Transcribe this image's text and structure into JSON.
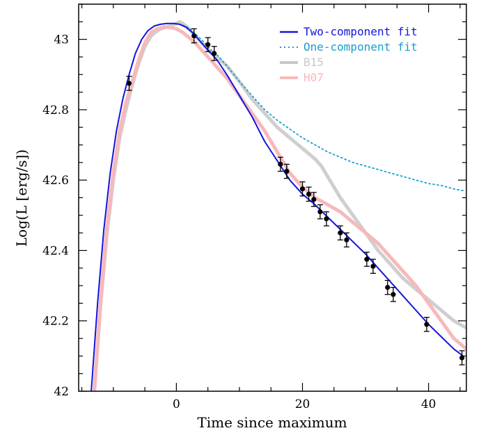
{
  "chart_data": {
    "type": "line",
    "title": "",
    "xlabel": "Time since maximum",
    "ylabel": "Log(L [erg/s])",
    "xlim": [
      -15.5,
      46
    ],
    "ylim": [
      42,
      43.1
    ],
    "x_ticks": [
      0,
      20,
      40
    ],
    "x_tick_labels": [
      "0",
      "20",
      "40"
    ],
    "x_minor_step": 5,
    "y_ticks": [
      42,
      42.2,
      42.4,
      42.6,
      42.8,
      43
    ],
    "y_tick_labels": [
      "42",
      "42.2",
      "42.4",
      "42.6",
      "42.8",
      "43"
    ],
    "y_minor_step": 0.05,
    "grid": false,
    "legend_position": "top-right",
    "series": [
      {
        "name": "B15",
        "style": "solid-thick",
        "color": "#cfcfcf",
        "x": [
          -13,
          -12,
          -11,
          -10,
          -9,
          -8,
          -7,
          -6,
          -5,
          -4,
          -3,
          -2,
          -1,
          0,
          0.5,
          1,
          2,
          3,
          4,
          5,
          6,
          7,
          8,
          10,
          12,
          14,
          16,
          18,
          20,
          22,
          23,
          24,
          25,
          26,
          28,
          30,
          32,
          34,
          36,
          38,
          40,
          42,
          44,
          46
        ],
        "y": [
          42,
          42.25,
          42.45,
          42.6,
          42.72,
          42.8,
          42.87,
          42.93,
          42.98,
          43.01,
          43.025,
          43.033,
          43.038,
          43.045,
          43.05,
          43.045,
          43.03,
          43.01,
          42.99,
          42.97,
          42.955,
          42.94,
          42.925,
          42.88,
          42.83,
          42.79,
          42.75,
          42.72,
          42.69,
          42.66,
          42.64,
          42.61,
          42.58,
          42.55,
          42.5,
          42.45,
          42.4,
          42.36,
          42.32,
          42.29,
          42.26,
          42.23,
          42.2,
          42.18
        ]
      },
      {
        "name": "H07",
        "style": "solid-thick",
        "color": "#f7b9bb",
        "x": [
          -13,
          -12,
          -11,
          -10,
          -9,
          -8,
          -7,
          -6,
          -5,
          -4,
          -3,
          -2,
          -1,
          0,
          1,
          2,
          3,
          4,
          5,
          6,
          8,
          10,
          12,
          14,
          16,
          17,
          18,
          20,
          22,
          24,
          26,
          28,
          30,
          32,
          34,
          36,
          38,
          40,
          42,
          44,
          46
        ],
        "y": [
          42.0,
          42.26,
          42.47,
          42.62,
          42.74,
          42.82,
          42.88,
          42.94,
          42.99,
          43.02,
          43.03,
          43.035,
          43.034,
          43.03,
          43.02,
          43.005,
          42.99,
          42.97,
          42.95,
          42.93,
          42.89,
          42.84,
          42.79,
          42.74,
          42.68,
          42.65,
          42.62,
          42.58,
          42.55,
          42.53,
          42.51,
          42.48,
          42.45,
          42.42,
          42.38,
          42.34,
          42.3,
          42.25,
          42.2,
          42.15,
          42.12
        ]
      },
      {
        "name": "One-component fit",
        "style": "dotted",
        "color": "#1a9ec9",
        "x": [
          -13.5,
          -12.5,
          -11.5,
          -10.5,
          -9.5,
          -8.5,
          -7.5,
          -6.5,
          -5.5,
          -4.5,
          -3.5,
          -2.5,
          -1.5,
          -0.5,
          0.5,
          1.5,
          2.5,
          3.5,
          4.5,
          5.5,
          6.5,
          8,
          10,
          12,
          14,
          16,
          18,
          20,
          22,
          24,
          26,
          28,
          30,
          32,
          34,
          36,
          38,
          40,
          42,
          44,
          45.5
        ],
        "y": [
          42.0,
          42.25,
          42.46,
          42.62,
          42.74,
          42.83,
          42.9,
          42.96,
          43.0,
          43.025,
          43.038,
          43.043,
          43.045,
          43.045,
          43.043,
          43.037,
          43.025,
          43.007,
          42.99,
          42.97,
          42.955,
          42.925,
          42.88,
          42.84,
          42.8,
          42.77,
          42.745,
          42.72,
          42.7,
          42.68,
          42.665,
          42.65,
          42.64,
          42.63,
          42.62,
          42.61,
          42.6,
          42.59,
          42.585,
          42.575,
          42.57
        ]
      },
      {
        "name": "Two-component fit",
        "style": "solid",
        "color": "#1414e0",
        "x": [
          -13.5,
          -12.5,
          -11.5,
          -10.5,
          -9.5,
          -8.5,
          -7.5,
          -6.5,
          -5.5,
          -4.5,
          -3.5,
          -2.5,
          -1.5,
          -0.5,
          0.5,
          1.5,
          2.5,
          3.5,
          4.5,
          5.5,
          6.5,
          8,
          10,
          12,
          14,
          16,
          18,
          20,
          22,
          24,
          26,
          28,
          30,
          32,
          34,
          36,
          38,
          40,
          42,
          44,
          45.5
        ],
        "y": [
          42.0,
          42.25,
          42.46,
          42.62,
          42.74,
          42.83,
          42.9,
          42.96,
          43.0,
          43.025,
          43.038,
          43.043,
          43.045,
          43.045,
          43.043,
          43.035,
          43.02,
          43.0,
          42.98,
          42.96,
          42.94,
          42.9,
          42.84,
          42.78,
          42.71,
          42.655,
          42.6,
          42.56,
          42.53,
          42.495,
          42.46,
          42.425,
          42.39,
          42.35,
          42.31,
          42.27,
          42.23,
          42.19,
          42.155,
          42.12,
          42.1
        ]
      }
    ],
    "observations": {
      "x": [
        -7.5,
        2.8,
        5.0,
        6.0,
        16.5,
        17.5,
        20.0,
        21.0,
        21.8,
        22.8,
        23.8,
        26.0,
        27.0,
        30.2,
        31.2,
        33.5,
        34.4,
        39.7,
        45.3
      ],
      "y": [
        42.875,
        43.01,
        42.985,
        42.96,
        42.645,
        42.625,
        42.575,
        42.56,
        42.545,
        42.51,
        42.49,
        42.45,
        42.43,
        42.375,
        42.355,
        42.295,
        42.275,
        42.19,
        42.095
      ],
      "err": [
        0.02,
        0.02,
        0.02,
        0.02,
        0.02,
        0.02,
        0.02,
        0.02,
        0.02,
        0.02,
        0.02,
        0.02,
        0.02,
        0.02,
        0.02,
        0.02,
        0.02,
        0.02,
        0.02
      ]
    },
    "legend": [
      {
        "label": "Two-component fit",
        "color": "#1414e0",
        "style": "solid"
      },
      {
        "label": "One-component fit",
        "color": "#1a9ec9",
        "style": "dotted"
      },
      {
        "label": "B15",
        "color": "#c8c8c8",
        "style": "solid-thick"
      },
      {
        "label": "H07",
        "color": "#f7b9bb",
        "style": "solid-thick"
      }
    ]
  }
}
